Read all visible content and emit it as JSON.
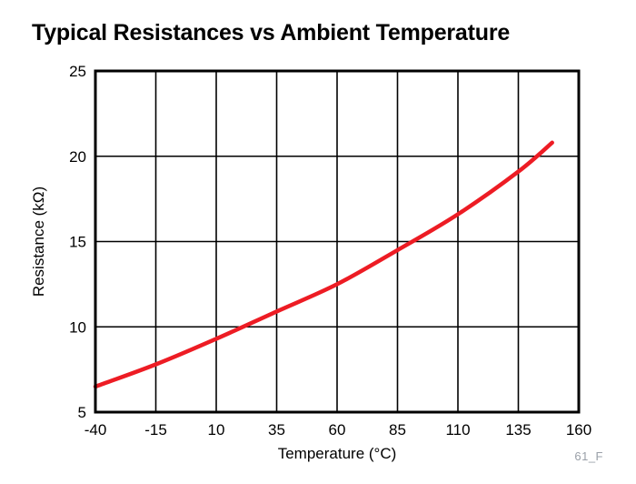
{
  "page": {
    "title": "Typical Resistances vs Ambient Temperature",
    "footnote": "61_F"
  },
  "chart_data": {
    "type": "line",
    "title": "Typical Resistances vs Ambient Temperature",
    "xlabel": "Temperature (°C)",
    "ylabel": "Resistance (kΩ)",
    "xlim": [
      -40,
      160
    ],
    "ylim": [
      5,
      25
    ],
    "xticks": [
      -40,
      -15,
      10,
      35,
      60,
      85,
      110,
      135,
      160
    ],
    "yticks": [
      5,
      10,
      15,
      20,
      25
    ],
    "grid": true,
    "legend": false,
    "plot_bg": "#ffffff",
    "grid_color": "#000000",
    "border_color": "#000000",
    "series": [
      {
        "name": "typical-resistance",
        "color": "#ed1c24",
        "x": [
          -40,
          -15,
          10,
          35,
          60,
          85,
          110,
          135,
          149
        ],
        "y": [
          6.5,
          7.8,
          9.3,
          10.9,
          12.5,
          14.5,
          16.6,
          19.1,
          20.8
        ]
      }
    ]
  }
}
